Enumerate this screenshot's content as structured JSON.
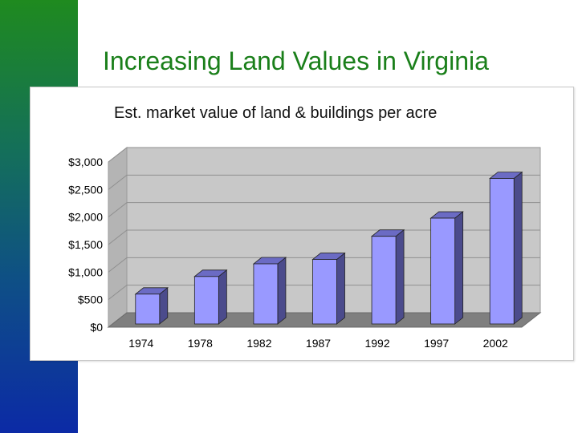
{
  "slide": {
    "title": "Increasing Land Values in Virginia"
  },
  "colors": {
    "title": "#1a7f1a",
    "bar_front": "#9999ff",
    "bar_side": "#4b4b8c",
    "bar_top": "#6b6bc4",
    "back_wall": "#c8c8c8",
    "floor": "#7f7f7f"
  },
  "chart_data": {
    "type": "bar",
    "title": "Est. market value of land & buildings per acre",
    "xlabel": "",
    "ylabel": "",
    "categories": [
      "1974",
      "1978",
      "1982",
      "1987",
      "1992",
      "1997",
      "2002"
    ],
    "values": [
      600,
      920,
      1150,
      1230,
      1650,
      1980,
      2700
    ],
    "ylim": [
      0,
      3000
    ],
    "yticks": [
      0,
      500,
      1000,
      1500,
      2000,
      2500,
      3000
    ],
    "ytick_labels": [
      "$0",
      "$500",
      "$1,000",
      "$1,500",
      "$2,000",
      "$2,500",
      "$3,000"
    ],
    "grid": true,
    "legend": "none",
    "style": "3d-column"
  }
}
